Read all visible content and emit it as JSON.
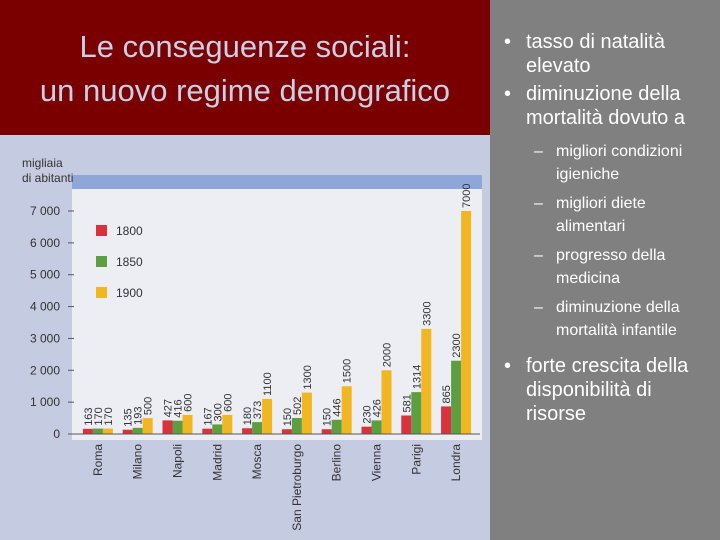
{
  "title_lines": [
    "Le conseguenze sociali:",
    "un nuovo regime demografico"
  ],
  "bullets": [
    {
      "text": "tasso di natalità elevato"
    },
    {
      "text": "diminuzione della mortalità dovuto a",
      "sub": [
        "migliori condizioni igieniche",
        "migliori diete alimentari",
        "progresso della medicina",
        "diminuzione della mortalità infantile"
      ]
    },
    {
      "text": "forte crescita della disponibilità di risorse"
    }
  ],
  "chart_data": {
    "type": "bar",
    "y_label_lines": [
      "migliaia",
      "di abitanti"
    ],
    "categories": [
      "Roma",
      "Milano",
      "Napoli",
      "Madrid",
      "Mosca",
      "San Pietroburgo",
      "Berlino",
      "Vienna",
      "Parigi",
      "Londra"
    ],
    "series": [
      {
        "name": "1800",
        "color": "#d9323c",
        "values": [
          163,
          135,
          427,
          167,
          180,
          150,
          150,
          230,
          581,
          865
        ]
      },
      {
        "name": "1850",
        "color": "#5c9e42",
        "values": [
          170,
          193,
          416,
          300,
          373,
          502,
          446,
          426,
          1314,
          2300
        ]
      },
      {
        "name": "1900",
        "color": "#f0b722",
        "values": [
          170,
          500,
          600,
          600,
          1100,
          1300,
          1500,
          2000,
          3300,
          7000
        ]
      }
    ],
    "ylim": [
      0,
      7000
    ],
    "yticks": [
      0,
      {
        "value": 1000,
        "label": "1 000"
      },
      {
        "value": 2000,
        "label": "2 000"
      },
      {
        "value": 3000,
        "label": "3 000"
      },
      {
        "value": 4000,
        "label": "4 000"
      },
      {
        "value": 5000,
        "label": "5 000"
      },
      {
        "value": 6000,
        "label": "6 000"
      },
      {
        "value": 7000,
        "label": "7 000"
      }
    ]
  }
}
